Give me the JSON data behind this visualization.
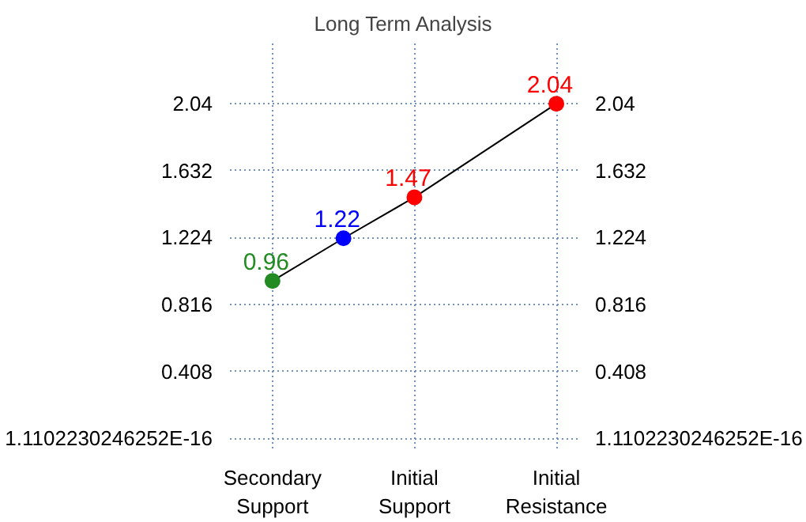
{
  "chart_data": {
    "type": "line",
    "title": "Long Term Analysis",
    "categories": [
      "Secondary Support",
      null,
      "Initial Support",
      null,
      "Initial Resistance"
    ],
    "series": [
      {
        "color": "#000000",
        "colors": [
          "#228b22",
          "#0000ff",
          "#ff0000",
          null,
          "#ff0000"
        ],
        "values": [
          0.96,
          1.22,
          1.47,
          null,
          2.04
        ]
      }
    ],
    "ylim": [
      0,
      2.04
    ],
    "yticks": [
      {
        "value": 0,
        "label": "1.1102230246252E-16"
      },
      0.408,
      0.816,
      1.224,
      1.632,
      2.04
    ],
    "y2lim": [
      0,
      2.04
    ],
    "y2ticks": [
      {
        "value": 0,
        "label": "1.1102230246252E-16"
      },
      0.408,
      0.816,
      1.224,
      1.632,
      2.04
    ],
    "grid": true,
    "marker": "circle",
    "line_style": "solid",
    "data_labels": true
  }
}
